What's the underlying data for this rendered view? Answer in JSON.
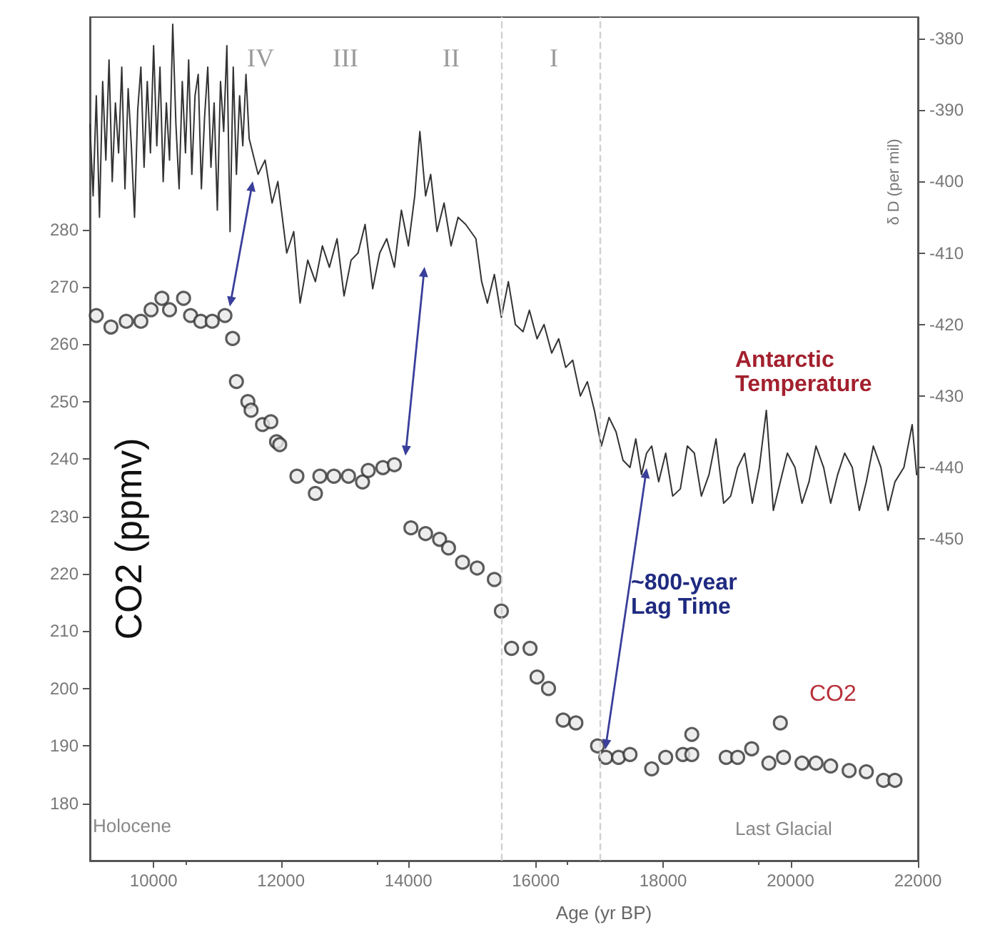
{
  "chart_data": {
    "type": "line",
    "xlabel": "Age (yr BP)",
    "ylabel": "CO2 (ppmv)",
    "y2label": "δ D (per mil)",
    "xlim": [
      9000,
      22000
    ],
    "xticks": [
      10000,
      12000,
      14000,
      16000,
      18000,
      20000,
      22000
    ],
    "ylim": [
      170,
      317
    ],
    "yticks": [
      180,
      190,
      200,
      210,
      220,
      230,
      240,
      250,
      260,
      270,
      280
    ],
    "y2lim": [
      -495,
      -377
    ],
    "y2ticks": [
      -380,
      -390,
      -400,
      -410,
      -420,
      -430,
      -440,
      -450
    ],
    "grid": false,
    "marker": "circle",
    "ref_lines": [
      {
        "axis": "x",
        "value": 15450,
        "label": null,
        "color": "#d0d0d0",
        "line_style": "dashed"
      },
      {
        "axis": "x",
        "value": 17000,
        "label": null,
        "color": "#d0d0d0",
        "line_style": "dashed"
      }
    ],
    "series": [
      {
        "axis": "y2",
        "color": "#333333",
        "marker": "none",
        "x": [
          9000,
          9050,
          9100,
          9150,
          9200,
          9250,
          9300,
          9350,
          9400,
          9450,
          9500,
          9550,
          9600,
          9650,
          9700,
          9750,
          9800,
          9850,
          9900,
          9950,
          10000,
          10050,
          10100,
          10150,
          10200,
          10250,
          10300,
          10350,
          10400,
          10450,
          10500,
          10550,
          10600,
          10650,
          10700,
          10750,
          10800,
          10850,
          10900,
          10950,
          11000,
          11050,
          11100,
          11150,
          11200,
          11250,
          11300,
          11350,
          11400,
          11450,
          11500,
          11640,
          11750,
          11860,
          11950,
          12090,
          12200,
          12300,
          12420,
          12540,
          12650,
          12760,
          12880,
          12990,
          13100,
          13210,
          13320,
          13440,
          13550,
          13660,
          13780,
          13890,
          14000,
          14100,
          14180,
          14270,
          14350,
          14450,
          14560,
          14670,
          14780,
          14900,
          15060,
          15150,
          15240,
          15350,
          15460,
          15570,
          15680,
          15800,
          15900,
          16020,
          16130,
          16250,
          16360,
          16470,
          16580,
          16700,
          16810,
          16920,
          17030,
          17150,
          17260,
          17370,
          17480,
          17570,
          17660,
          17740,
          17820,
          17930,
          18040,
          18150,
          18270,
          18380,
          18490,
          18600,
          18720,
          18830,
          18950,
          19060,
          19170,
          19280,
          19400,
          19510,
          19620,
          19730,
          19840,
          19950,
          20070,
          20180,
          20290,
          20400,
          20520,
          20630,
          20740,
          20850,
          20970,
          21080,
          21190,
          21300,
          21420,
          21530,
          21640,
          21780,
          21910,
          21980
        ],
        "values": [
          -392,
          -402,
          -388,
          -405,
          -386,
          -397,
          -383,
          -400,
          -389,
          -396,
          -384,
          -401,
          -387,
          -395,
          -405,
          -390,
          -384,
          -398,
          -386,
          -396,
          -381,
          -395,
          -384,
          -400,
          -389,
          -397,
          -378,
          -392,
          -401,
          -386,
          -396,
          -383,
          -399,
          -388,
          -385,
          -401,
          -391,
          -384,
          -398,
          -389,
          -404,
          -386,
          -393,
          -381,
          -407,
          -384,
          -399,
          -388,
          -395,
          -385,
          -394,
          -399,
          -397,
          -403,
          -400,
          -410,
          -407,
          -417,
          -411,
          -414,
          -409,
          -412,
          -408,
          -416,
          -411,
          -410,
          -406,
          -415,
          -410,
          -408,
          -412,
          -404,
          -409,
          -402,
          -393,
          -402,
          -399,
          -407,
          -403,
          -409,
          -405,
          -406,
          -408,
          -414,
          -417,
          -413,
          -419,
          -414,
          -420,
          -421,
          -418,
          -422,
          -420,
          -424,
          -422,
          -426,
          -425,
          -430,
          -428,
          -432,
          -437,
          -433,
          -435,
          -439,
          -440,
          -436,
          -441,
          -438,
          -437,
          -442,
          -438,
          -444,
          -443,
          -437,
          -438,
          -444,
          -441,
          -436,
          -445,
          -444,
          -440,
          -438,
          -445,
          -440,
          -432,
          -446,
          -442,
          -438,
          -440,
          -445,
          -442,
          -437,
          -440,
          -445,
          -441,
          -438,
          -440,
          -446,
          -442,
          -437,
          -440,
          -446,
          -442,
          -440,
          -434,
          -441
        ]
      },
      {
        "type": "scatter",
        "color": "#333333",
        "x": [
          9100,
          9330,
          9570,
          9800,
          9960,
          10130,
          10250,
          10470,
          10580,
          10740,
          10920,
          11120,
          11240,
          11300,
          11480,
          11530,
          11710,
          11840,
          11930,
          11980,
          12250,
          12540,
          12610,
          12830,
          13060,
          13280,
          13370,
          13600,
          13780,
          14040,
          14270,
          14490,
          14630,
          14850,
          15080,
          15350,
          15460,
          15620,
          15910,
          16020,
          16200,
          16430,
          16630,
          16970,
          17100,
          17300,
          17480,
          17820,
          18040,
          18310,
          18450,
          18450,
          18990,
          19170,
          19390,
          19660,
          19840,
          19890,
          20180,
          20400,
          20630,
          20920,
          21190,
          21460,
          21640
        ],
        "values": [
          265,
          263,
          264,
          264,
          266,
          268,
          266,
          268,
          265,
          264,
          264,
          265,
          261,
          253.5,
          250,
          248.5,
          246,
          246.5,
          243,
          242.5,
          237,
          234,
          237,
          237,
          237,
          236,
          238,
          238.5,
          239,
          228,
          227,
          226,
          224.5,
          222,
          221,
          219,
          213.5,
          207,
          207,
          202,
          200,
          194.5,
          194,
          190,
          188,
          188,
          188.5,
          186,
          188,
          188.5,
          192,
          188.5,
          188,
          188,
          189.5,
          187,
          194,
          188,
          187,
          187,
          186.5,
          185.7,
          185.5,
          184,
          184
        ]
      }
    ],
    "annotations": [
      "IV",
      "III",
      "II",
      "I",
      "Antarctic Temperature",
      "~800-year Lag Time",
      "CO2",
      "Holocene",
      "Last Glacial"
    ]
  }
}
